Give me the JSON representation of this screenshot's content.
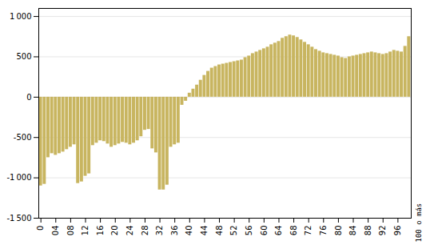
{
  "chart_data": {
    "type": "bar",
    "color": "#C8B560",
    "grid": true,
    "annotations": [
      {
        "text": "100 o más"
      }
    ],
    "categories": [
      "0",
      null,
      null,
      null,
      "04",
      null,
      null,
      null,
      "08",
      null,
      null,
      null,
      "12",
      null,
      null,
      null,
      "16",
      null,
      null,
      null,
      "20",
      null,
      null,
      null,
      "24",
      null,
      null,
      null,
      "28",
      null,
      null,
      null,
      "32",
      null,
      null,
      null,
      "36",
      null,
      null,
      null,
      "40",
      null,
      null,
      null,
      "44",
      null,
      null,
      null,
      "48",
      null,
      null,
      null,
      "52",
      null,
      null,
      null,
      "56",
      null,
      null,
      null,
      "60",
      null,
      null,
      null,
      "64",
      null,
      null,
      null,
      "68",
      null,
      null,
      null,
      "72",
      null,
      null,
      null,
      "76",
      null,
      null,
      null,
      "80",
      null,
      null,
      null,
      "84",
      null,
      null,
      null,
      "88",
      null,
      null,
      null,
      "92",
      null,
      null,
      null,
      "96",
      null,
      null,
      null
    ],
    "values": [
      -1100,
      -1080,
      -750,
      -700,
      -720,
      -700,
      -680,
      -650,
      -620,
      -590,
      -1070,
      -1050,
      -980,
      -950,
      -600,
      -570,
      -540,
      -550,
      -580,
      -620,
      -600,
      -580,
      -560,
      -570,
      -590,
      -570,
      -540,
      -490,
      -410,
      -400,
      -640,
      -690,
      -1150,
      -1150,
      -1090,
      -620,
      -590,
      -570,
      -100,
      -50,
      50,
      100,
      150,
      210,
      270,
      320,
      360,
      380,
      400,
      410,
      420,
      430,
      440,
      450,
      460,
      490,
      510,
      540,
      560,
      580,
      600,
      620,
      650,
      670,
      690,
      730,
      750,
      770,
      760,
      740,
      710,
      680,
      650,
      620,
      590,
      570,
      550,
      540,
      530,
      520,
      510,
      490,
      480,
      500,
      510,
      520,
      530,
      540,
      550,
      560,
      550,
      540,
      530,
      540,
      560,
      580,
      570,
      560,
      630,
      750
    ],
    "ylim": [
      -1500,
      1100
    ],
    "yticks": [
      {
        "value": -1500,
        "label": "-1 500"
      },
      {
        "value": -1000,
        "label": "-1 000"
      },
      -500,
      0,
      500,
      {
        "value": 1000,
        "label": "1 000"
      }
    ]
  }
}
